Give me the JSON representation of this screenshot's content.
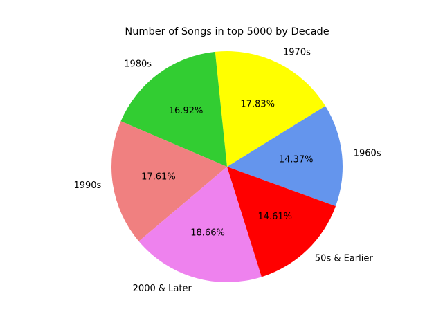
{
  "chart_data": {
    "type": "pie",
    "title": "Number of Songs in top 5000 by Decade",
    "slices": [
      {
        "label": "1960s",
        "value": 14.37,
        "pct_label": "14.37%",
        "color": "#6495ED"
      },
      {
        "label": "1970s",
        "value": 17.83,
        "pct_label": "17.83%",
        "color": "#FFFF00"
      },
      {
        "label": "1980s",
        "value": 16.92,
        "pct_label": "16.92%",
        "color": "#32CD32"
      },
      {
        "label": "1990s",
        "value": 17.61,
        "pct_label": "17.61%",
        "color": "#F08080"
      },
      {
        "label": "2000 & Later",
        "value": 18.66,
        "pct_label": "18.66%",
        "color": "#EE82EE"
      },
      {
        "label": "50s & Earlier",
        "value": 14.61,
        "pct_label": "14.61%",
        "color": "#FF0000"
      }
    ],
    "legend": "none"
  }
}
